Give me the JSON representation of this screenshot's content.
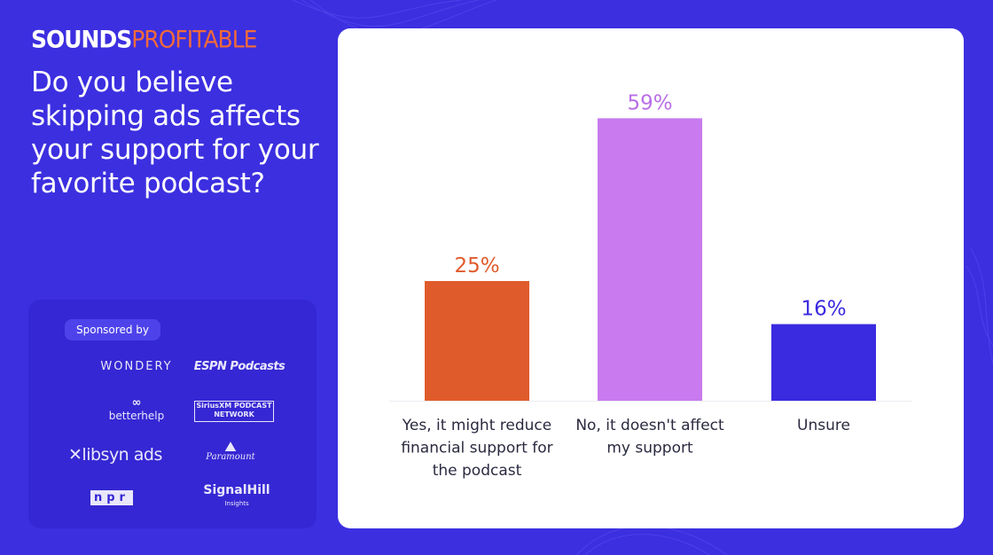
{
  "brand": {
    "part1": "SOUNDS",
    "part2": "PROFITABLE"
  },
  "question": "Do you believe skipping ads affects your support for your favorite podcast?",
  "sponsors": {
    "heading": "Sponsored by",
    "wondery": "WONDERY",
    "espn": "ESPN Podcasts",
    "betterhelp": "betterhelp",
    "siriusxm_top": "SiriusXM PODCAST",
    "siriusxm_bottom": "NETWORK",
    "libsyn": "libsyn ads",
    "paramount": "Paramount",
    "npr": "npr",
    "signalhill": "SignalHill",
    "signalhill_sub": "Insights"
  },
  "colors": {
    "background": "#3c2fe0",
    "bar_yes": "#e05b2c",
    "bar_no": "#c87aee",
    "bar_unsure": "#3a2ae0",
    "label_yes": "#e05b2c",
    "label_no": "#b96fe6",
    "label_unsure": "#3a2ae0"
  },
  "chart_data": {
    "type": "bar",
    "title": "Do you believe skipping ads affects your support for your favorite podcast?",
    "categories": [
      "Yes, it might reduce financial support for the podcast",
      "No, it doesn't affect my support",
      "Unsure"
    ],
    "category_lines": [
      [
        "Yes, it might reduce",
        "financial support for",
        "the podcast"
      ],
      [
        "No, it doesn't affect",
        "my support"
      ],
      [
        "Unsure"
      ]
    ],
    "values": [
      25,
      59,
      16
    ],
    "value_labels": [
      "25%",
      "59%",
      "16%"
    ],
    "unit": "%",
    "ylim": [
      0,
      100
    ],
    "grid": false,
    "xlabel": "",
    "ylabel": ""
  }
}
